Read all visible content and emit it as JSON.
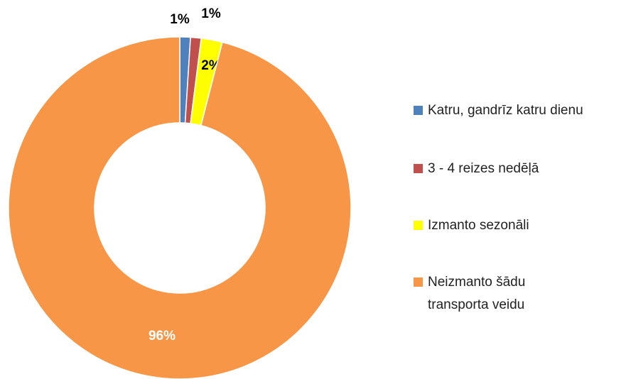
{
  "chart_data": {
    "type": "donut",
    "categories": [
      "Katru, gandrīz katru dienu",
      "3 - 4 reizes nedēļā",
      "Izmanto sezonāli",
      "Neizmanto šādu transporta veidu"
    ],
    "values": [
      1,
      1,
      2,
      96
    ],
    "value_labels": [
      "1%",
      "1%",
      "2%",
      "96%"
    ],
    "colors": [
      "#4f81bd",
      "#c0504d",
      "#ffff00",
      "#f79646"
    ],
    "legend": "right"
  }
}
